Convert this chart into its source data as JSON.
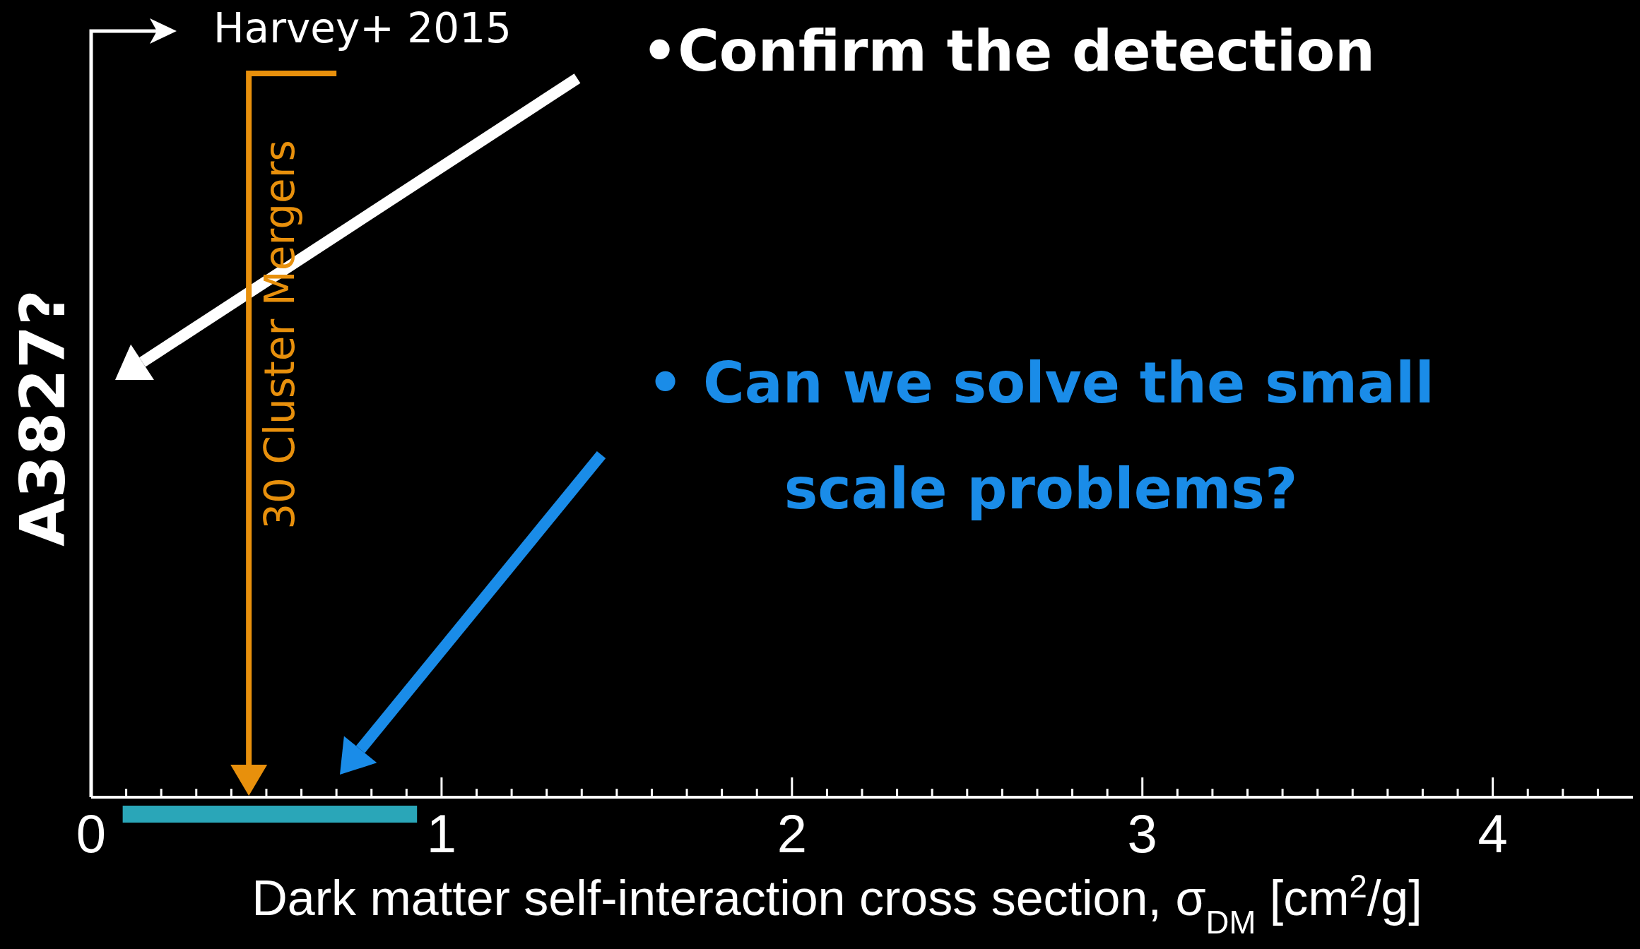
{
  "chart_data": {
    "type": "bar",
    "orientation": "horizontal",
    "categories": [
      null
    ],
    "base": [
      0.09
    ],
    "values": [
      0.84
    ],
    "color": "#2aa6b8",
    "xlabel": "Dark matter self-interaction cross section, σ$_{DM}$ [cm$^{2}$/g]",
    "xlim": [
      0,
      4.4
    ],
    "xticks": [
      0,
      {
        "value": 0.1,
        "label": null
      },
      {
        "value": 0.2,
        "label": null
      },
      {
        "value": 0.3,
        "label": null
      },
      {
        "value": 0.4,
        "label": null
      },
      {
        "value": 0.5,
        "label": null
      },
      {
        "value": 0.6,
        "label": null
      },
      {
        "value": 0.7,
        "label": null
      },
      {
        "value": 0.8,
        "label": null
      },
      {
        "value": 0.9,
        "label": null
      },
      1,
      {
        "value": 1.1,
        "label": null
      },
      {
        "value": 1.2,
        "label": null
      },
      {
        "value": 1.3,
        "label": null
      },
      {
        "value": 1.4,
        "label": null
      },
      {
        "value": 1.5,
        "label": null
      },
      {
        "value": 1.6,
        "label": null
      },
      {
        "value": 1.7,
        "label": null
      },
      {
        "value": 1.8,
        "label": null
      },
      {
        "value": 1.9,
        "label": null
      },
      2,
      {
        "value": 2.1,
        "label": null
      },
      {
        "value": 2.2,
        "label": null
      },
      {
        "value": 2.3,
        "label": null
      },
      {
        "value": 2.4,
        "label": null
      },
      {
        "value": 2.5,
        "label": null
      },
      {
        "value": 2.6,
        "label": null
      },
      {
        "value": 2.7,
        "label": null
      },
      {
        "value": 2.8,
        "label": null
      },
      {
        "value": 2.9,
        "label": null
      },
      3,
      {
        "value": 3.1,
        "label": null
      },
      {
        "value": 3.2,
        "label": null
      },
      {
        "value": 3.3,
        "label": null
      },
      {
        "value": 3.4,
        "label": null
      },
      {
        "value": 3.5,
        "label": null
      },
      {
        "value": 3.6,
        "label": null
      },
      {
        "value": 3.7,
        "label": null
      },
      {
        "value": 3.8,
        "label": null
      },
      {
        "value": 3.9,
        "label": null
      },
      4,
      {
        "value": 4.1,
        "label": null
      },
      {
        "value": 4.2,
        "label": null
      },
      {
        "value": 4.3,
        "label": null
      }
    ],
    "ref_lines": [
      {
        "axis": "x",
        "value": 0,
        "label": "A3827?",
        "color": "#ffffff"
      },
      {
        "axis": "x",
        "value": 0.45,
        "label": "30 Cluster Mergers",
        "color": "#e8900c"
      }
    ],
    "annotations": [
      "Harvey+ 2015",
      "•Confirm the detection",
      "• Can we solve the small scale problems?"
    ]
  }
}
